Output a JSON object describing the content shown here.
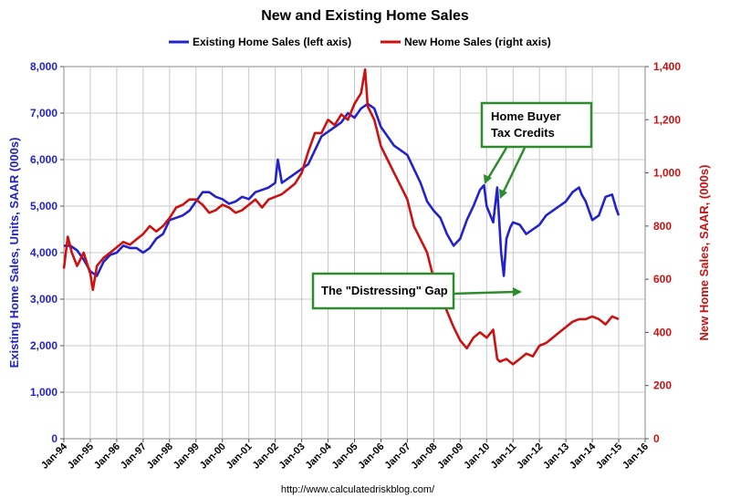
{
  "chart_data": {
    "type": "line",
    "title": "New and Existing Home Sales",
    "ylabel_left": "Existing Home Sales, Units, SAAR (000s)",
    "ylabel_right": "New Home Sales, SAAR, (000s)",
    "source": "http://www.calculatedriskblog.com/",
    "x_ticks": [
      "Jan-94",
      "Jan-95",
      "Jan-96",
      "Jan-97",
      "Jan-98",
      "Jan-99",
      "Jan-00",
      "Jan-01",
      "Jan-02",
      "Jan-03",
      "Jan-04",
      "Jan-05",
      "Jan-06",
      "Jan-07",
      "Jan-08",
      "Jan-09",
      "Jan-10",
      "Jan-11",
      "Jan-12",
      "Jan-13",
      "Jan-14",
      "Jan-15",
      "Jan-16"
    ],
    "xlim": [
      1994,
      2016
    ],
    "y_left": {
      "lim": [
        0,
        8000
      ],
      "ticks": [
        "0",
        "1,000",
        "2,000",
        "3,000",
        "4,000",
        "5,000",
        "6,000",
        "7,000",
        "8,000"
      ]
    },
    "y_right": {
      "lim": [
        0,
        1400
      ],
      "ticks": [
        "0",
        "200",
        "400",
        "600",
        "800",
        "1,000",
        "1,200",
        "1,400"
      ]
    },
    "grid": true,
    "legend_position": "top-center",
    "series": [
      {
        "name": "Existing Home Sales (left axis)",
        "axis": "left",
        "color": "#2222cc",
        "x": [
          1994.0,
          1994.25,
          1994.5,
          1994.75,
          1995.0,
          1995.25,
          1995.5,
          1995.75,
          1996.0,
          1996.25,
          1996.5,
          1996.75,
          1997.0,
          1997.25,
          1997.5,
          1997.75,
          1998.0,
          1998.25,
          1998.5,
          1998.75,
          1999.0,
          1999.25,
          1999.5,
          1999.75,
          2000.0,
          2000.25,
          2000.5,
          2000.75,
          2001.0,
          2001.25,
          2001.5,
          2001.75,
          2002.0,
          2002.1,
          2002.25,
          2002.5,
          2002.75,
          2003.0,
          2003.25,
          2003.5,
          2003.75,
          2004.0,
          2004.25,
          2004.5,
          2004.75,
          2005.0,
          2005.25,
          2005.5,
          2005.75,
          2006.0,
          2006.25,
          2006.5,
          2006.75,
          2007.0,
          2007.25,
          2007.5,
          2007.75,
          2008.0,
          2008.25,
          2008.5,
          2008.75,
          2009.0,
          2009.25,
          2009.5,
          2009.75,
          2009.9,
          2010.0,
          2010.25,
          2010.4,
          2010.55,
          2010.65,
          2010.75,
          2010.9,
          2011.0,
          2011.25,
          2011.5,
          2011.75,
          2012.0,
          2012.25,
          2012.5,
          2012.75,
          2013.0,
          2013.25,
          2013.5,
          2013.6,
          2013.75,
          2014.0,
          2014.25,
          2014.5,
          2014.75,
          2014.9,
          2015.0
        ],
        "values": [
          4150,
          4150,
          4050,
          3850,
          3600,
          3500,
          3800,
          3950,
          4000,
          4150,
          4100,
          4100,
          4000,
          4100,
          4300,
          4400,
          4700,
          4750,
          4800,
          4900,
          5100,
          5300,
          5300,
          5200,
          5150,
          5050,
          5100,
          5200,
          5150,
          5300,
          5350,
          5400,
          5500,
          6000,
          5500,
          5600,
          5700,
          5800,
          5900,
          6200,
          6500,
          6600,
          6700,
          6800,
          7000,
          6900,
          7100,
          7200,
          7100,
          6700,
          6500,
          6300,
          6200,
          6100,
          5800,
          5500,
          5100,
          4900,
          4750,
          4400,
          4150,
          4300,
          4700,
          5000,
          5350,
          5450,
          5000,
          4650,
          5400,
          4000,
          3500,
          4300,
          4550,
          4650,
          4600,
          4400,
          4500,
          4600,
          4800,
          4900,
          5000,
          5100,
          5300,
          5400,
          5250,
          5100,
          4700,
          4800,
          5200,
          5250,
          4950,
          4800
        ]
      },
      {
        "name": "New Home Sales (right axis)",
        "axis": "right",
        "color": "#cc1111",
        "x": [
          1994.0,
          1994.15,
          1994.3,
          1994.5,
          1994.75,
          1995.0,
          1995.1,
          1995.25,
          1995.5,
          1995.75,
          1996.0,
          1996.25,
          1996.5,
          1996.75,
          1997.0,
          1997.25,
          1997.5,
          1997.75,
          1998.0,
          1998.25,
          1998.5,
          1998.75,
          1999.0,
          1999.25,
          1999.5,
          1999.75,
          2000.0,
          2000.25,
          2000.5,
          2000.75,
          2001.0,
          2001.25,
          2001.5,
          2001.75,
          2002.0,
          2002.25,
          2002.5,
          2002.75,
          2003.0,
          2003.25,
          2003.5,
          2003.75,
          2004.0,
          2004.25,
          2004.5,
          2004.75,
          2005.0,
          2005.25,
          2005.4,
          2005.5,
          2005.75,
          2006.0,
          2006.25,
          2006.5,
          2006.75,
          2007.0,
          2007.25,
          2007.5,
          2007.75,
          2008.0,
          2008.25,
          2008.5,
          2008.75,
          2009.0,
          2009.25,
          2009.5,
          2009.75,
          2010.0,
          2010.25,
          2010.4,
          2010.5,
          2010.75,
          2011.0,
          2011.25,
          2011.5,
          2011.75,
          2012.0,
          2012.25,
          2012.5,
          2012.75,
          2013.0,
          2013.25,
          2013.5,
          2013.75,
          2014.0,
          2014.25,
          2014.5,
          2014.75,
          2015.0
        ],
        "values": [
          640,
          760,
          700,
          650,
          700,
          620,
          560,
          650,
          680,
          700,
          720,
          740,
          730,
          750,
          770,
          800,
          780,
          800,
          830,
          870,
          880,
          900,
          900,
          880,
          850,
          860,
          880,
          870,
          850,
          860,
          880,
          900,
          870,
          900,
          910,
          920,
          940,
          960,
          1000,
          1080,
          1150,
          1150,
          1200,
          1180,
          1220,
          1200,
          1260,
          1300,
          1389,
          1250,
          1200,
          1100,
          1050,
          1000,
          950,
          900,
          800,
          750,
          700,
          600,
          540,
          480,
          420,
          370,
          340,
          380,
          400,
          380,
          410,
          300,
          290,
          300,
          280,
          300,
          320,
          310,
          350,
          360,
          380,
          400,
          420,
          440,
          450,
          450,
          460,
          450,
          430,
          460,
          450
        ]
      }
    ],
    "annotations": [
      {
        "text": "Home Buyer\nTax Credits",
        "lines": [
          "Home Buyer",
          "Tax Credits"
        ]
      },
      {
        "text": "The \"Distressing\" Gap"
      }
    ]
  }
}
